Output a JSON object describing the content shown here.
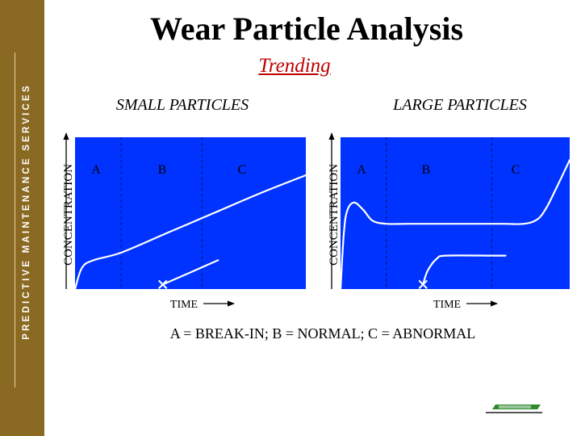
{
  "header": {
    "title": "Wear Particle Analysis",
    "subtitle": "Trending"
  },
  "sidebar": {
    "label": "PREDICTIVE MAINTENANCE SERVICES"
  },
  "colors": {
    "sidebar": "#8a6a22",
    "plot_bg": "#0033ff",
    "curve": "#ffffff",
    "subtitle": "#c00000",
    "marker": "#ffffff"
  },
  "legend": "A = BREAK-IN;  B = NORMAL;  C = ABNORMAL",
  "chart_data": [
    {
      "type": "line",
      "title": "SMALL PARTICLES",
      "xlabel": "TIME",
      "ylabel": "CONCENTRATION",
      "grid": false,
      "xlim": [
        0,
        100
      ],
      "ylim": [
        0,
        100
      ],
      "regions": [
        {
          "label": "A",
          "start": 0,
          "end": 20
        },
        {
          "label": "B",
          "start": 20,
          "end": 55
        },
        {
          "label": "C",
          "start": 55,
          "end": 100
        }
      ],
      "series": [
        {
          "x": [
            0,
            3,
            8,
            20,
            40,
            60,
            80,
            100
          ],
          "y": [
            0,
            14,
            19,
            24,
            37,
            50,
            63,
            75
          ]
        },
        {
          "x": [
            38,
            62
          ],
          "y": [
            3,
            19
          ]
        }
      ],
      "markers": [
        {
          "x": 38,
          "y": 3
        }
      ]
    },
    {
      "type": "line",
      "title": "LARGE PARTICLES",
      "xlabel": "TIME",
      "ylabel": "CONCENTRATION",
      "grid": false,
      "xlim": [
        0,
        100
      ],
      "ylim": [
        0,
        100
      ],
      "regions": [
        {
          "label": "A",
          "start": 0,
          "end": 20
        },
        {
          "label": "B",
          "start": 20,
          "end": 66
        },
        {
          "label": "C",
          "start": 66,
          "end": 100
        }
      ],
      "series": [
        {
          "x": [
            0,
            1.5,
            3,
            6,
            10,
            14,
            20,
            30,
            50,
            70,
            80,
            86,
            90,
            94,
            100
          ],
          "y": [
            0,
            38,
            52,
            57,
            52,
            45,
            43,
            43,
            43,
            43,
            43,
            46,
            54,
            66,
            85
          ]
        },
        {
          "x": [
            36,
            38,
            42,
            46,
            66,
            72
          ],
          "y": [
            3,
            12,
            20,
            22,
            22,
            22
          ]
        }
      ],
      "markers": [
        {
          "x": 36,
          "y": 3
        }
      ]
    }
  ]
}
